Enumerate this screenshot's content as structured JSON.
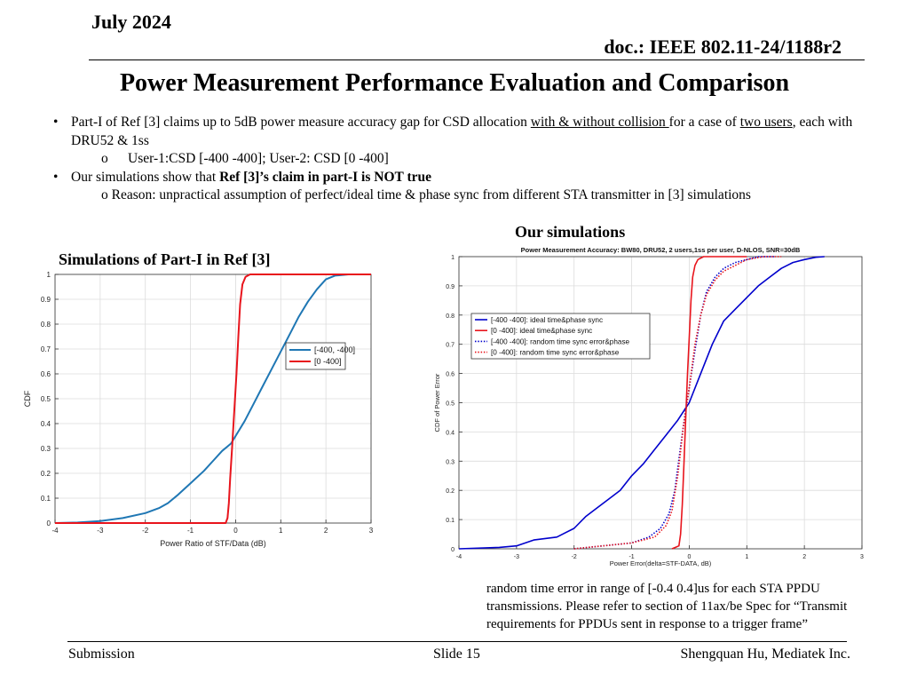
{
  "header": {
    "date": "July 2024",
    "doc": "doc.: IEEE 802.11-24/1188r2"
  },
  "title": "Power Measurement Performance Evaluation and Comparison",
  "bullets": {
    "b1_pre": "Part-I of Ref [3] claims up to 5dB power measure accuracy gap for CSD allocation ",
    "b1_u1": "with & without collision ",
    "b1_mid": "for a case of ",
    "b1_u2": "two users",
    "b1_post": ", each with DRU52 & 1ss",
    "sub1_marker": "o",
    "sub1": "User-1:CSD [-400 -400]; User-2: CSD [0 -400]",
    "b2_pre": "Our simulations show that ",
    "b2_bold": "Ref [3]’s claim in part-I is NOT true",
    "sub2": "o Reason: unpractical assumption of perfect/ideal time & phase sync from different STA transmitter in [3] simulations"
  },
  "labels": {
    "ours": "Our simulations",
    "ref": "Simulations of Part-I in Ref [3]"
  },
  "note": "random time error in range of  [-0.4 0.4]us for each STA PPDU transmissions. Please refer to section of 11ax/be Spec for “Transmit requirements for PPDUs sent in response to a trigger frame”",
  "footer": {
    "left": "Submission",
    "center": "Slide 15",
    "right": "Shengquan Hu, Mediatek Inc."
  },
  "chart_data": [
    {
      "id": "ref",
      "type": "line",
      "title": "",
      "xlabel": "Power Ratio of STF/Data (dB)",
      "ylabel": "CDF",
      "xlim": [
        -4,
        3
      ],
      "ylim": [
        0,
        1
      ],
      "xticks": [
        -4,
        -3,
        -2,
        -1,
        0,
        1,
        2,
        3
      ],
      "yticks": [
        0,
        0.1,
        0.2,
        0.3,
        0.4,
        0.5,
        0.6,
        0.7,
        0.8,
        0.9,
        1
      ],
      "grid": true,
      "legend": "upper-right",
      "series": [
        {
          "name": "[-400, -400]",
          "color": "#1f77b4",
          "style": "solid",
          "x": [
            -4,
            -3.5,
            -3,
            -2.5,
            -2,
            -1.7,
            -1.5,
            -1.3,
            -1.0,
            -0.7,
            -0.5,
            -0.3,
            -0.1,
            0,
            0.2,
            0.4,
            0.6,
            0.8,
            1.0,
            1.2,
            1.4,
            1.6,
            1.8,
            2.0,
            2.2,
            2.5,
            3
          ],
          "y": [
            0,
            0.002,
            0.008,
            0.02,
            0.04,
            0.06,
            0.08,
            0.11,
            0.16,
            0.21,
            0.25,
            0.29,
            0.32,
            0.35,
            0.41,
            0.48,
            0.55,
            0.62,
            0.69,
            0.76,
            0.83,
            0.89,
            0.94,
            0.98,
            0.995,
            1,
            1
          ]
        },
        {
          "name": "[0 -400]",
          "color": "#e8141c",
          "style": "solid",
          "x": [
            -4,
            -0.5,
            -0.22,
            -0.18,
            -0.15,
            -0.12,
            -0.08,
            -0.03,
            0.02,
            0.06,
            0.1,
            0.15,
            0.22,
            0.32,
            0.45,
            3
          ],
          "y": [
            0,
            0,
            0,
            0.02,
            0.08,
            0.18,
            0.3,
            0.45,
            0.6,
            0.75,
            0.88,
            0.96,
            0.99,
            1,
            1,
            1
          ]
        }
      ]
    },
    {
      "id": "ours",
      "type": "line",
      "title": "Power Measurement Accuracy: BW80, DRU52, 2 users,1ss per user, D-NLOS, SNR=30dB",
      "xlabel": "Power Error(delta=STF-DATA, dB)",
      "ylabel": "CDF of Power Error",
      "xlim": [
        -4,
        3
      ],
      "ylim": [
        0,
        1
      ],
      "xticks": [
        -4,
        -3,
        -2,
        -1,
        0,
        1,
        2,
        3
      ],
      "yticks": [
        0,
        0.1,
        0.2,
        0.3,
        0.4,
        0.5,
        0.6,
        0.7,
        0.8,
        0.9,
        1
      ],
      "grid": true,
      "legend": "upper-left",
      "series": [
        {
          "name": "[-400 -400]: ideal time&phase sync",
          "color": "#0000cc",
          "style": "solid",
          "x": [
            -4,
            -3.3,
            -3.0,
            -2.7,
            -2.3,
            -2.0,
            -1.8,
            -1.6,
            -1.4,
            -1.2,
            -1.0,
            -0.8,
            -0.6,
            -0.4,
            -0.2,
            0,
            0.2,
            0.4,
            0.6,
            0.8,
            1.0,
            1.2,
            1.4,
            1.6,
            1.8,
            2.0,
            2.2,
            2.35
          ],
          "y": [
            0,
            0.005,
            0.01,
            0.03,
            0.04,
            0.07,
            0.11,
            0.14,
            0.17,
            0.2,
            0.25,
            0.29,
            0.34,
            0.39,
            0.44,
            0.5,
            0.6,
            0.7,
            0.78,
            0.82,
            0.86,
            0.9,
            0.93,
            0.96,
            0.98,
            0.99,
            0.998,
            1
          ]
        },
        {
          "name": "[0 -400]: ideal time&phase sync",
          "color": "#e8141c",
          "style": "solid",
          "x": [
            -0.3,
            -0.18,
            -0.15,
            -0.12,
            -0.09,
            -0.06,
            -0.03,
            0,
            0.03,
            0.06,
            0.1,
            0.15,
            0.25,
            0.5,
            1.0
          ],
          "y": [
            0,
            0.01,
            0.05,
            0.15,
            0.3,
            0.45,
            0.6,
            0.72,
            0.85,
            0.93,
            0.97,
            0.99,
            1,
            1,
            1
          ]
        },
        {
          "name": "[-400 -400]: random time sync error&phase",
          "color": "#0000cc",
          "style": "dotted",
          "x": [
            -2.0,
            -1.5,
            -1.0,
            -0.7,
            -0.5,
            -0.35,
            -0.25,
            -0.15,
            -0.08,
            0,
            0.1,
            0.2,
            0.3,
            0.45,
            0.6,
            0.8,
            1.0,
            1.2,
            1.5
          ],
          "y": [
            0,
            0.01,
            0.02,
            0.04,
            0.07,
            0.12,
            0.2,
            0.35,
            0.45,
            0.55,
            0.68,
            0.8,
            0.88,
            0.93,
            0.96,
            0.98,
            0.99,
            1,
            1
          ]
        },
        {
          "name": "[0 -400]: random time sync error&phase",
          "color": "#e8141c",
          "style": "dotted",
          "x": [
            -2.0,
            -1.5,
            -1.0,
            -0.6,
            -0.4,
            -0.3,
            -0.2,
            -0.1,
            0,
            0.1,
            0.2,
            0.3,
            0.45,
            0.6,
            0.8,
            1.0,
            1.3,
            1.6
          ],
          "y": [
            0,
            0.01,
            0.02,
            0.04,
            0.08,
            0.13,
            0.25,
            0.42,
            0.55,
            0.7,
            0.8,
            0.87,
            0.92,
            0.95,
            0.97,
            0.99,
            1,
            1
          ]
        }
      ]
    }
  ]
}
